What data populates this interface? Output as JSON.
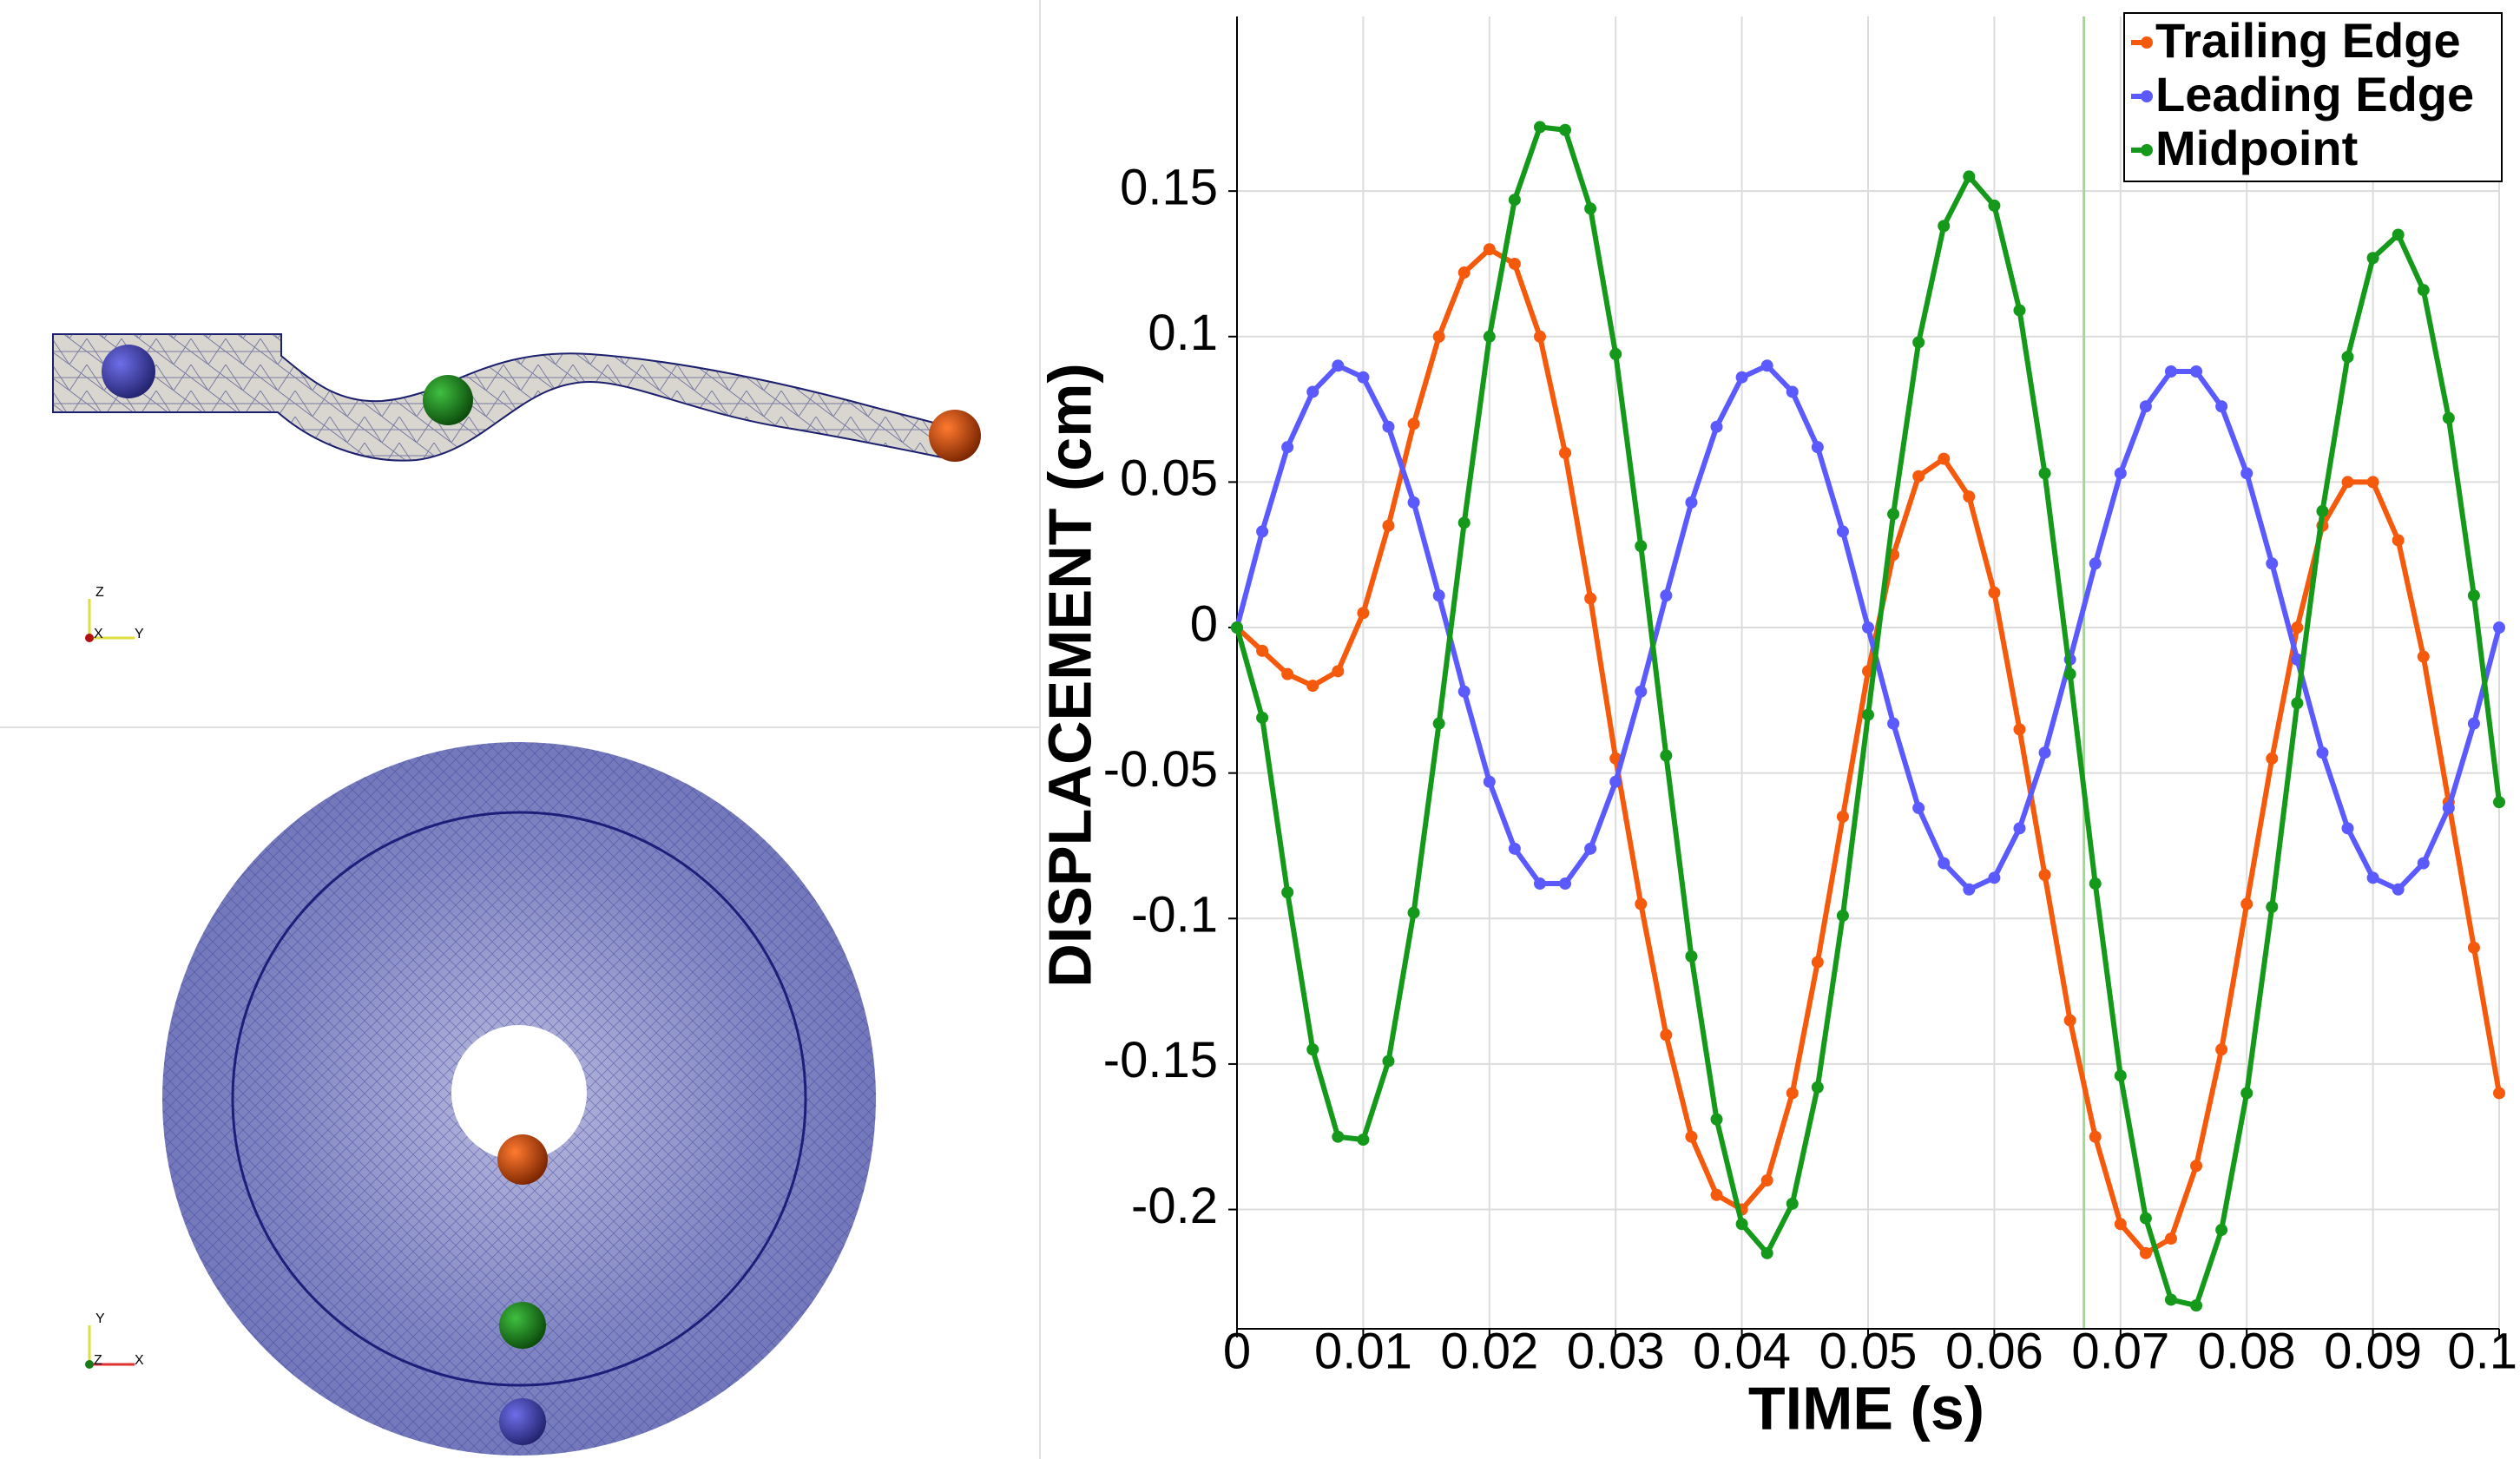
{
  "chart_data": {
    "type": "line",
    "x_label": "TIME (s)",
    "y_label": "DISPLACEMENT (cm)",
    "x": [
      0,
      0.002,
      0.004,
      0.006,
      0.008,
      0.01,
      0.012,
      0.014,
      0.016,
      0.018,
      0.02,
      0.022,
      0.024,
      0.026,
      0.028,
      0.03,
      0.032,
      0.034,
      0.036,
      0.038,
      0.04,
      0.042,
      0.044,
      0.046,
      0.048,
      0.05,
      0.052,
      0.054,
      0.056,
      0.058,
      0.06,
      0.062,
      0.064,
      0.066,
      0.068,
      0.07,
      0.072,
      0.074,
      0.076,
      0.078,
      0.08,
      0.082,
      0.084,
      0.086,
      0.088,
      0.09,
      0.092,
      0.094,
      0.096,
      0.098,
      0.1
    ],
    "series": [
      {
        "name": "Trailing Edge",
        "color": "#f55a0c",
        "values": [
          0,
          -0.008,
          -0.016,
          -0.02,
          -0.015,
          0.005,
          0.035,
          0.07,
          0.1,
          0.122,
          0.13,
          0.125,
          0.1,
          0.06,
          0.01,
          -0.045,
          -0.095,
          -0.14,
          -0.175,
          -0.195,
          -0.2,
          -0.19,
          -0.16,
          -0.115,
          -0.065,
          -0.015,
          0.025,
          0.052,
          0.058,
          0.045,
          0.012,
          -0.035,
          -0.085,
          -0.135,
          -0.175,
          -0.205,
          -0.215,
          -0.21,
          -0.185,
          -0.145,
          -0.095,
          -0.045,
          0,
          0.035,
          0.05,
          0.05,
          0.03,
          -0.01,
          -0.06,
          -0.11,
          -0.16
        ]
      },
      {
        "name": "Leading Edge",
        "color": "#5a5aff",
        "values": [
          0,
          0.033,
          0.062,
          0.081,
          0.09,
          0.086,
          0.069,
          0.043,
          0.011,
          -0.022,
          -0.053,
          -0.076,
          -0.088,
          -0.088,
          -0.076,
          -0.053,
          -0.022,
          0.011,
          0.043,
          0.069,
          0.086,
          0.09,
          0.081,
          0.062,
          0.033,
          0,
          -0.033,
          -0.062,
          -0.081,
          -0.09,
          -0.086,
          -0.069,
          -0.043,
          -0.011,
          0.022,
          0.053,
          0.076,
          0.088,
          0.088,
          0.076,
          0.053,
          0.022,
          -0.011,
          -0.043,
          -0.069,
          -0.086,
          -0.09,
          -0.081,
          -0.062,
          -0.033,
          0
        ]
      },
      {
        "name": "Midpoint",
        "color": "#14991a",
        "values": [
          0,
          -0.031,
          -0.091,
          -0.145,
          -0.175,
          -0.176,
          -0.149,
          -0.098,
          -0.033,
          0.036,
          0.1,
          0.147,
          0.172,
          0.171,
          0.144,
          0.094,
          0.028,
          -0.044,
          -0.113,
          -0.169,
          -0.205,
          -0.215,
          -0.198,
          -0.158,
          -0.099,
          -0.03,
          0.039,
          0.098,
          0.138,
          0.155,
          0.145,
          0.109,
          0.053,
          -0.016,
          -0.088,
          -0.154,
          -0.203,
          -0.231,
          -0.233,
          -0.207,
          -0.16,
          -0.096,
          -0.026,
          0.04,
          0.093,
          0.127,
          0.135,
          0.116,
          0.072,
          0.011,
          -0.06
        ]
      }
    ],
    "xlim": [
      0,
      0.1
    ],
    "xticks": [
      0,
      0.01,
      0.02,
      0.03,
      0.04,
      0.05,
      0.06,
      0.07,
      0.08,
      0.09,
      0.1
    ],
    "ylim": [
      -0.241,
      0.21
    ],
    "yticks": [
      -0.2,
      -0.15,
      -0.1,
      -0.05,
      0,
      0.05,
      0.1,
      0.15
    ],
    "grid": true,
    "legend": "top-right",
    "time_marker": 0.0671,
    "time_marker_color": "#9fdc8f"
  },
  "views": {
    "top": {
      "axes": [
        "Z",
        "X",
        "Y"
      ]
    },
    "bottom": {
      "axes": [
        "Y",
        "Z",
        "X"
      ]
    }
  }
}
